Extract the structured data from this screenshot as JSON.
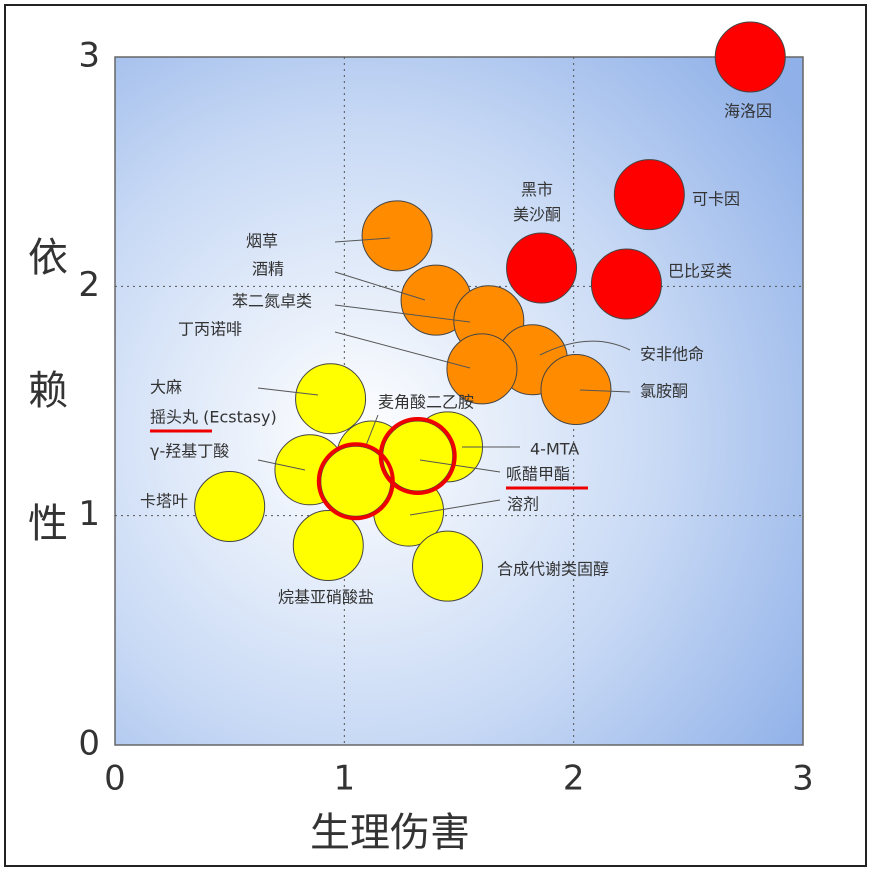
{
  "chart_data": {
    "type": "scatter",
    "xlabel": "生理伤害",
    "ylabel": "依赖性",
    "xlim": [
      0,
      3
    ],
    "ylim": [
      0,
      3
    ],
    "xticks": [
      0,
      1,
      2,
      3
    ],
    "yticks": [
      0,
      1,
      2,
      3
    ],
    "grid": true,
    "series": [
      {
        "color": "#ff0000",
        "x": [
          2.77,
          2.33,
          1.86,
          2.23
        ],
        "values": [
          3.0,
          2.4,
          2.08,
          2.01
        ],
        "labels": [
          "海洛因",
          "可卡因",
          "黑市\n美沙酮",
          "巴比妥类"
        ]
      },
      {
        "color": "#ff8c00",
        "x": [
          1.23,
          1.4,
          1.63,
          1.82,
          1.6,
          2.01
        ],
        "values": [
          2.22,
          1.94,
          1.85,
          1.68,
          1.64,
          1.55
        ],
        "labels": [
          "烟草",
          "酒精",
          "苯二氮卓类",
          "安非他命",
          "丁丙诺啡",
          "氯胺酮"
        ]
      },
      {
        "color": "#ffff00",
        "x": [
          0.94,
          0.85,
          0.5,
          0.93,
          1.12,
          1.45,
          1.28,
          1.45,
          1.05,
          1.32
        ],
        "values": [
          1.51,
          1.2,
          1.04,
          0.87,
          1.26,
          1.3,
          1.02,
          0.78,
          1.15,
          1.26
        ],
        "labels": [
          "大麻",
          "γ-羟基丁酸",
          "卡塔叶",
          "烷基亚硝酸盐",
          "麦角酸二乙胺",
          "4-MTA",
          "溶剂",
          "合成代谢类固醇",
          "摇头丸 (Ecstasy)",
          "哌醋甲酯"
        ],
        "highlight": [
          false,
          false,
          false,
          false,
          false,
          false,
          false,
          false,
          true,
          true
        ]
      }
    ]
  }
}
